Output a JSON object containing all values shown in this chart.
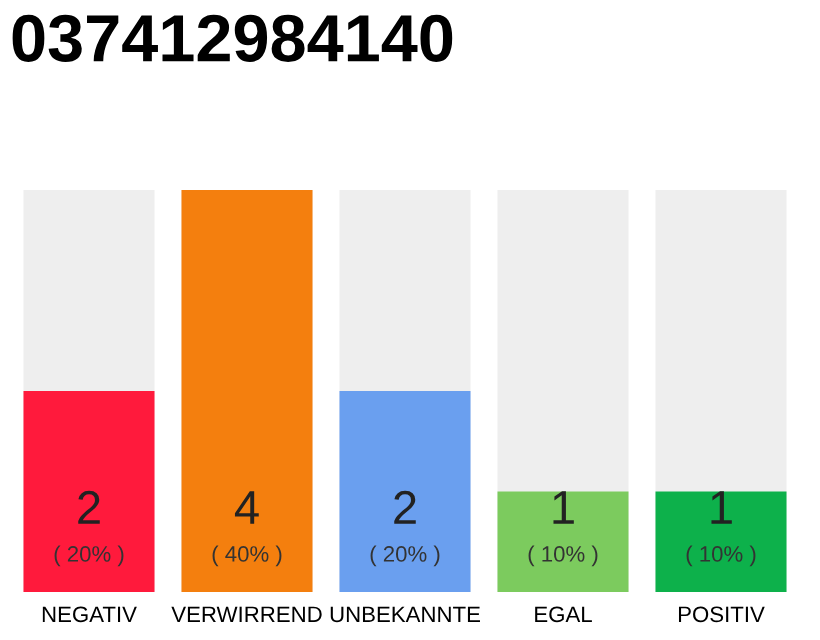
{
  "chart_data": {
    "type": "bar",
    "title": "037412984140",
    "categories": [
      "NEGATIV",
      "VERWIRREND",
      "UNBEKANNTE",
      "EGAL",
      "POSITIV"
    ],
    "values": [
      2,
      4,
      2,
      1,
      1
    ],
    "colors": [
      "#ff1a3c",
      "#f47f0e",
      "#6a9fef",
      "#7ccb5e",
      "#0db14b"
    ],
    "value_labels": [
      "2\n( 20% )",
      "4\n( 40% )",
      "2\n( 20% )",
      "1\n( 10% )",
      "1\n( 10% )"
    ],
    "grid": false,
    "legend": false
  }
}
